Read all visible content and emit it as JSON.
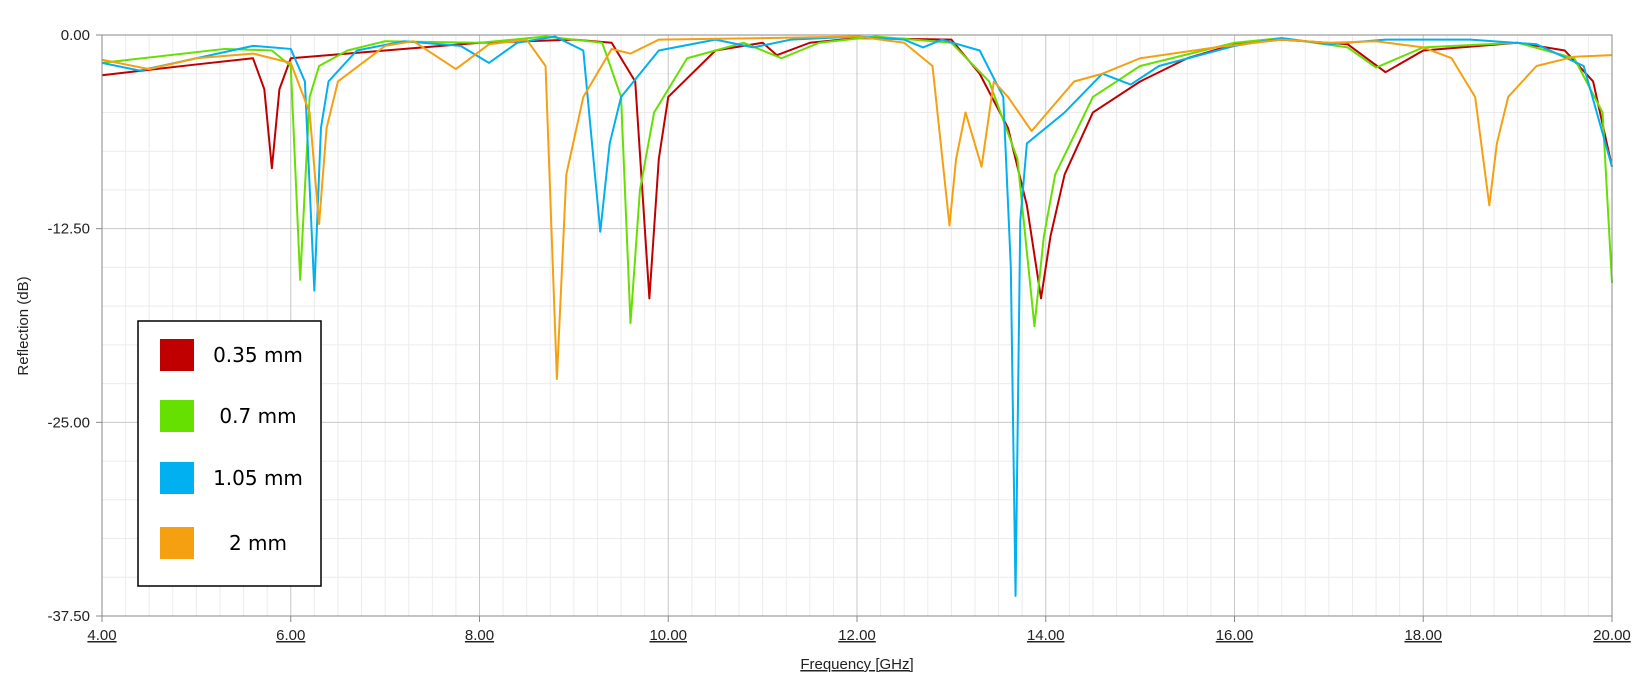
{
  "chart_data": {
    "type": "line",
    "x_label": "Frequency [GHz]",
    "y_label": "Reflection (dB)",
    "xlim": [
      4,
      20
    ],
    "ylim": [
      -37.5,
      0
    ],
    "xticks": [
      {
        "value": 4,
        "label": "4.00"
      },
      {
        "value": 6,
        "label": "6.00"
      },
      {
        "value": 8,
        "label": "8.00"
      },
      {
        "value": 10,
        "label": "10.00"
      },
      {
        "value": 12,
        "label": "12.00"
      },
      {
        "value": 14,
        "label": "14.00"
      },
      {
        "value": 16,
        "label": "16.00"
      },
      {
        "value": 18,
        "label": "18.00"
      },
      {
        "value": 20,
        "label": "20.00"
      }
    ],
    "yticks": [
      {
        "value": 0,
        "label": "0.00"
      },
      {
        "value": -12.5,
        "label": "-12.50"
      },
      {
        "value": -25,
        "label": "-25.00"
      },
      {
        "value": -37.5,
        "label": "-37.50"
      }
    ],
    "grid": true,
    "legend": "lower left",
    "series": [
      {
        "name": "0.35 mm",
        "color": "#c00000",
        "x": [
          4,
          5,
          5.6,
          5.72,
          5.8,
          5.88,
          6.0,
          7,
          8,
          9.0,
          9.4,
          9.65,
          9.8,
          9.9,
          10.0,
          10.5,
          11,
          11.15,
          11.5,
          12,
          13,
          13.3,
          13.6,
          13.8,
          13.95,
          14.05,
          14.2,
          14.5,
          15,
          15.5,
          16,
          16.5,
          17.2,
          17.6,
          18,
          19,
          19.5,
          19.8,
          20
        ],
        "values": [
          -2.6,
          -1.9,
          -1.5,
          -3.5,
          -8.6,
          -3.5,
          -1.5,
          -1.0,
          -0.5,
          -0.3,
          -0.5,
          -3.0,
          -17.0,
          -8.0,
          -4.0,
          -1.0,
          -0.5,
          -1.3,
          -0.5,
          -0.2,
          -0.3,
          -2.5,
          -6.0,
          -11.0,
          -17.0,
          -13.0,
          -9.0,
          -5.0,
          -3.0,
          -1.5,
          -0.6,
          -0.3,
          -0.6,
          -2.4,
          -1.0,
          -0.5,
          -1.0,
          -3.0,
          -8.5
        ]
      },
      {
        "name": "0.7 mm",
        "color": "#66e000",
        "x": [
          4,
          5.3,
          5.8,
          6.0,
          6.1,
          6.2,
          6.3,
          6.6,
          7,
          8,
          8.7,
          9.3,
          9.5,
          9.6,
          9.7,
          9.85,
          10.2,
          10.8,
          11.2,
          11.6,
          12.2,
          13,
          13.4,
          13.7,
          13.88,
          13.98,
          14.1,
          14.5,
          15,
          16,
          16.5,
          17.2,
          17.5,
          18,
          19,
          19.6,
          19.9,
          20
        ],
        "values": [
          -1.8,
          -0.9,
          -1.0,
          -2.0,
          -15.8,
          -4.0,
          -2.0,
          -1.0,
          -0.4,
          -0.5,
          -0.1,
          -0.5,
          -4.0,
          -18.6,
          -10.0,
          -5.0,
          -1.5,
          -0.5,
          -1.5,
          -0.5,
          -0.1,
          -0.5,
          -3.0,
          -8.0,
          -18.8,
          -13.0,
          -9.0,
          -4.0,
          -2.0,
          -0.5,
          -0.2,
          -0.8,
          -2.1,
          -0.8,
          -0.5,
          -1.5,
          -5.0,
          -16.0
        ]
      },
      {
        "name": "1.05 mm",
        "color": "#00b0f0",
        "x": [
          4,
          4.4,
          5,
          5.6,
          6.0,
          6.15,
          6.25,
          6.32,
          6.4,
          6.7,
          7.2,
          7.8,
          8.1,
          8.4,
          8.8,
          9.1,
          9.28,
          9.38,
          9.5,
          9.9,
          10.5,
          10.9,
          11.3,
          12,
          12.5,
          12.7,
          12.9,
          13.3,
          13.55,
          13.63,
          13.68,
          13.73,
          13.8,
          14.2,
          14.6,
          14.9,
          15.2,
          16,
          16.5,
          17,
          17.6,
          18.5,
          19.2,
          19.7,
          20
        ],
        "values": [
          -1.8,
          -2.3,
          -1.5,
          -0.7,
          -0.9,
          -3.0,
          -16.5,
          -6.0,
          -3.0,
          -1.0,
          -0.4,
          -0.7,
          -1.8,
          -0.5,
          -0.1,
          -1.0,
          -12.7,
          -7.0,
          -4.0,
          -1.0,
          -0.3,
          -0.8,
          -0.3,
          -0.1,
          -0.3,
          -0.8,
          -0.3,
          -1.0,
          -4.0,
          -15.0,
          -36.2,
          -12.0,
          -7.0,
          -5.0,
          -2.5,
          -3.2,
          -2.0,
          -0.7,
          -0.2,
          -0.6,
          -0.3,
          -0.3,
          -0.6,
          -2.0,
          -8.5
        ]
      },
      {
        "name": "2 mm",
        "color": "#f5a011",
        "x": [
          4,
          4.5,
          5,
          5.6,
          6.0,
          6.2,
          6.3,
          6.38,
          6.5,
          7,
          7.3,
          7.75,
          8.1,
          8.5,
          8.7,
          8.82,
          8.92,
          9.1,
          9.4,
          9.6,
          9.9,
          11,
          12,
          12.5,
          12.8,
          12.98,
          13.05,
          13.15,
          13.32,
          13.45,
          13.6,
          13.85,
          14.3,
          14.6,
          15,
          15.8,
          16.5,
          17,
          17.5,
          18,
          18.3,
          18.55,
          18.7,
          18.78,
          18.9,
          19.2,
          19.6,
          20
        ],
        "values": [
          -1.6,
          -2.2,
          -1.5,
          -1.2,
          -1.8,
          -5.0,
          -12.2,
          -6.0,
          -3.0,
          -0.7,
          -0.4,
          -2.2,
          -0.6,
          -0.3,
          -2.0,
          -22.2,
          -9.0,
          -4.0,
          -0.9,
          -1.2,
          -0.3,
          -0.2,
          -0.1,
          -0.5,
          -2.0,
          -12.3,
          -8.0,
          -5.0,
          -8.5,
          -3.0,
          -4.0,
          -6.2,
          -3.0,
          -2.5,
          -1.5,
          -0.8,
          -0.3,
          -0.5,
          -0.4,
          -0.8,
          -1.5,
          -4.0,
          -11.0,
          -7.0,
          -4.0,
          -2.0,
          -1.4,
          -1.3
        ]
      }
    ]
  }
}
